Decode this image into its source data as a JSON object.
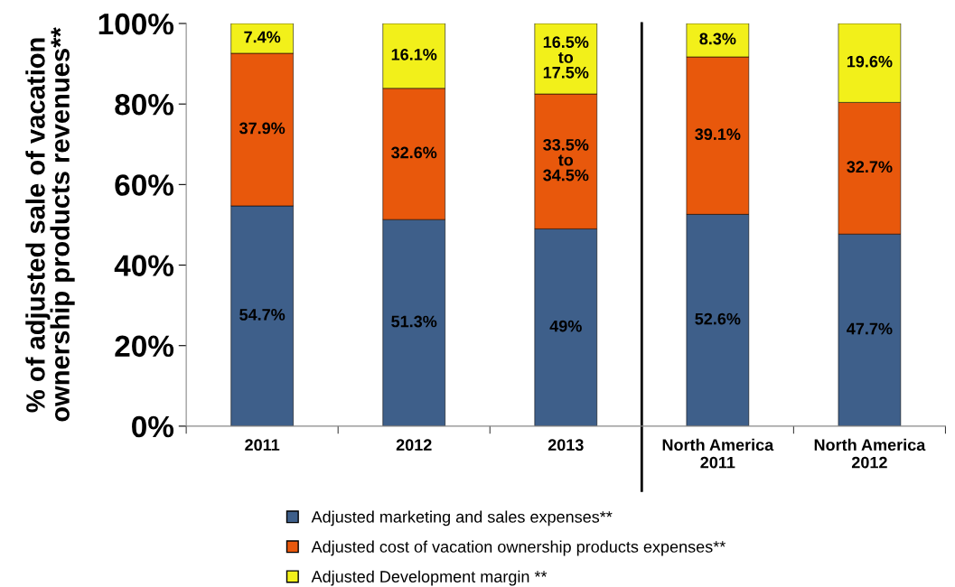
{
  "chart_data": {
    "type": "bar",
    "stacked": true,
    "ylabel": "% of adjusted sale of vacation\nownership products revenues**",
    "categories": [
      "2011",
      "2012",
      "2013",
      "North America\n2011",
      "North America\n2012"
    ],
    "series": [
      {
        "name": "Adjusted marketing and sales expenses**",
        "color": "#3e5f8a",
        "values": [
          54.7,
          51.3,
          49,
          52.6,
          47.7
        ],
        "value_labels": [
          "54.7%",
          "51.3%",
          "49%",
          "52.6%",
          "47.7%"
        ]
      },
      {
        "name": "Adjusted cost of vacation ownership products expenses**",
        "color": "#e8580c",
        "values": [
          37.9,
          32.6,
          33.5,
          39.1,
          32.7
        ],
        "value_labels": [
          "37.9%",
          "32.6%",
          "33.5%\nto\n34.5%",
          "39.1%",
          "32.7%"
        ]
      },
      {
        "name": "Adjusted Development margin **",
        "color": "#f2f01a",
        "values": [
          7.4,
          16.1,
          17.5,
          8.3,
          19.6
        ],
        "value_labels": [
          "7.4%",
          "16.1%",
          "16.5%\nto\n17.5%",
          "8.3%",
          "19.6%"
        ]
      }
    ],
    "ylim": [
      0,
      100
    ],
    "yticks": [
      {
        "value": 0,
        "label": "0%"
      },
      {
        "value": 20,
        "label": "20%"
      },
      {
        "value": 40,
        "label": "40%"
      },
      {
        "value": 60,
        "label": "60%"
      },
      {
        "value": 80,
        "label": "80%"
      },
      {
        "value": 100,
        "label": "100%"
      }
    ],
    "grid": false,
    "legend": "bottom"
  }
}
